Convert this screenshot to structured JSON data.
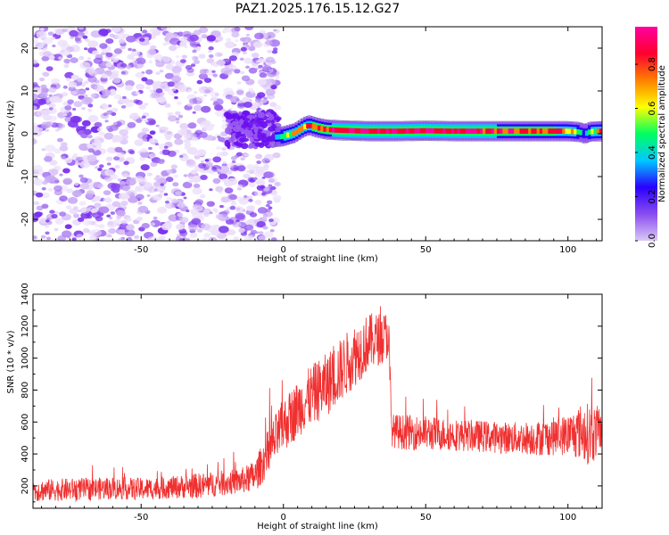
{
  "figure": {
    "title": "PAZ1.2025.176.15.12.G27"
  },
  "chart_data": [
    {
      "type": "heatmap",
      "xlabel": "Height of straight line (km)",
      "ylabel": "Frequency (Hz)",
      "xlim": [
        -88,
        112
      ],
      "ylim": [
        -25,
        25
      ],
      "x_ticks": [
        -50,
        0,
        50,
        100
      ],
      "y_ticks": [
        -20,
        -10,
        0,
        10,
        20
      ],
      "colorbar": {
        "label": "Normalized spectral amplitude",
        "range": [
          0,
          0.97
        ],
        "ticks": [
          0.0,
          0.2,
          0.4,
          0.6,
          0.8
        ],
        "colormap": [
          "#d9c8f5",
          "#8a4cf0",
          "#2a00ff",
          "#00c8ff",
          "#00ff60",
          "#ffff00",
          "#ff8000",
          "#ff0030",
          "#ff00a0"
        ]
      },
      "signal_track": {
        "x": [
          -3,
          0,
          4,
          7,
          9,
          12,
          15,
          20,
          30,
          40,
          50,
          60,
          70,
          80,
          90,
          100,
          104,
          106,
          108,
          112
        ],
        "frequency": [
          -0.8,
          -0.6,
          0.2,
          1.5,
          2.0,
          1.4,
          1.0,
          0.8,
          0.6,
          0.6,
          0.7,
          0.6,
          0.6,
          0.6,
          0.6,
          0.6,
          0.4,
          0.0,
          0.5,
          0.6
        ],
        "amplitude": [
          0.45,
          0.55,
          0.6,
          0.7,
          0.75,
          0.8,
          0.85,
          0.9,
          0.92,
          0.95,
          0.9,
          0.92,
          0.88,
          0.85,
          0.8,
          0.75,
          0.5,
          0.35,
          0.6,
          0.7
        ]
      },
      "noise_region": {
        "x_range": [
          -88,
          -2
        ],
        "amplitude_range": [
          0.0,
          0.2
        ]
      }
    },
    {
      "type": "line",
      "xlabel": "Height of straight line (km)",
      "ylabel": "SNR (10 * v/v)",
      "xlim": [
        -88,
        112
      ],
      "ylim": [
        60,
        1400
      ],
      "x_ticks": [
        -50,
        0,
        50,
        100
      ],
      "y_ticks": [
        200,
        400,
        600,
        800,
        1000,
        1200,
        1400
      ],
      "series": [
        {
          "color": "#f03030",
          "x": [
            -88,
            -80,
            -70,
            -60,
            -50,
            -40,
            -30,
            -20,
            -15,
            -10,
            -5,
            0,
            5,
            10,
            15,
            20,
            25,
            30,
            35,
            37,
            38,
            40,
            50,
            60,
            70,
            80,
            90,
            100,
            105,
            108,
            112
          ],
          "y": [
            170,
            175,
            180,
            185,
            180,
            190,
            200,
            220,
            230,
            260,
            420,
            580,
            680,
            770,
            830,
            920,
            1020,
            1100,
            1130,
            1150,
            550,
            540,
            530,
            520,
            510,
            500,
            500,
            520,
            540,
            520,
            560
          ],
          "spread": [
            70,
            70,
            70,
            70,
            70,
            70,
            80,
            80,
            80,
            100,
            150,
            170,
            180,
            190,
            200,
            200,
            200,
            180,
            160,
            150,
            100,
            110,
            110,
            100,
            100,
            100,
            110,
            130,
            180,
            200,
            130
          ]
        }
      ]
    }
  ]
}
